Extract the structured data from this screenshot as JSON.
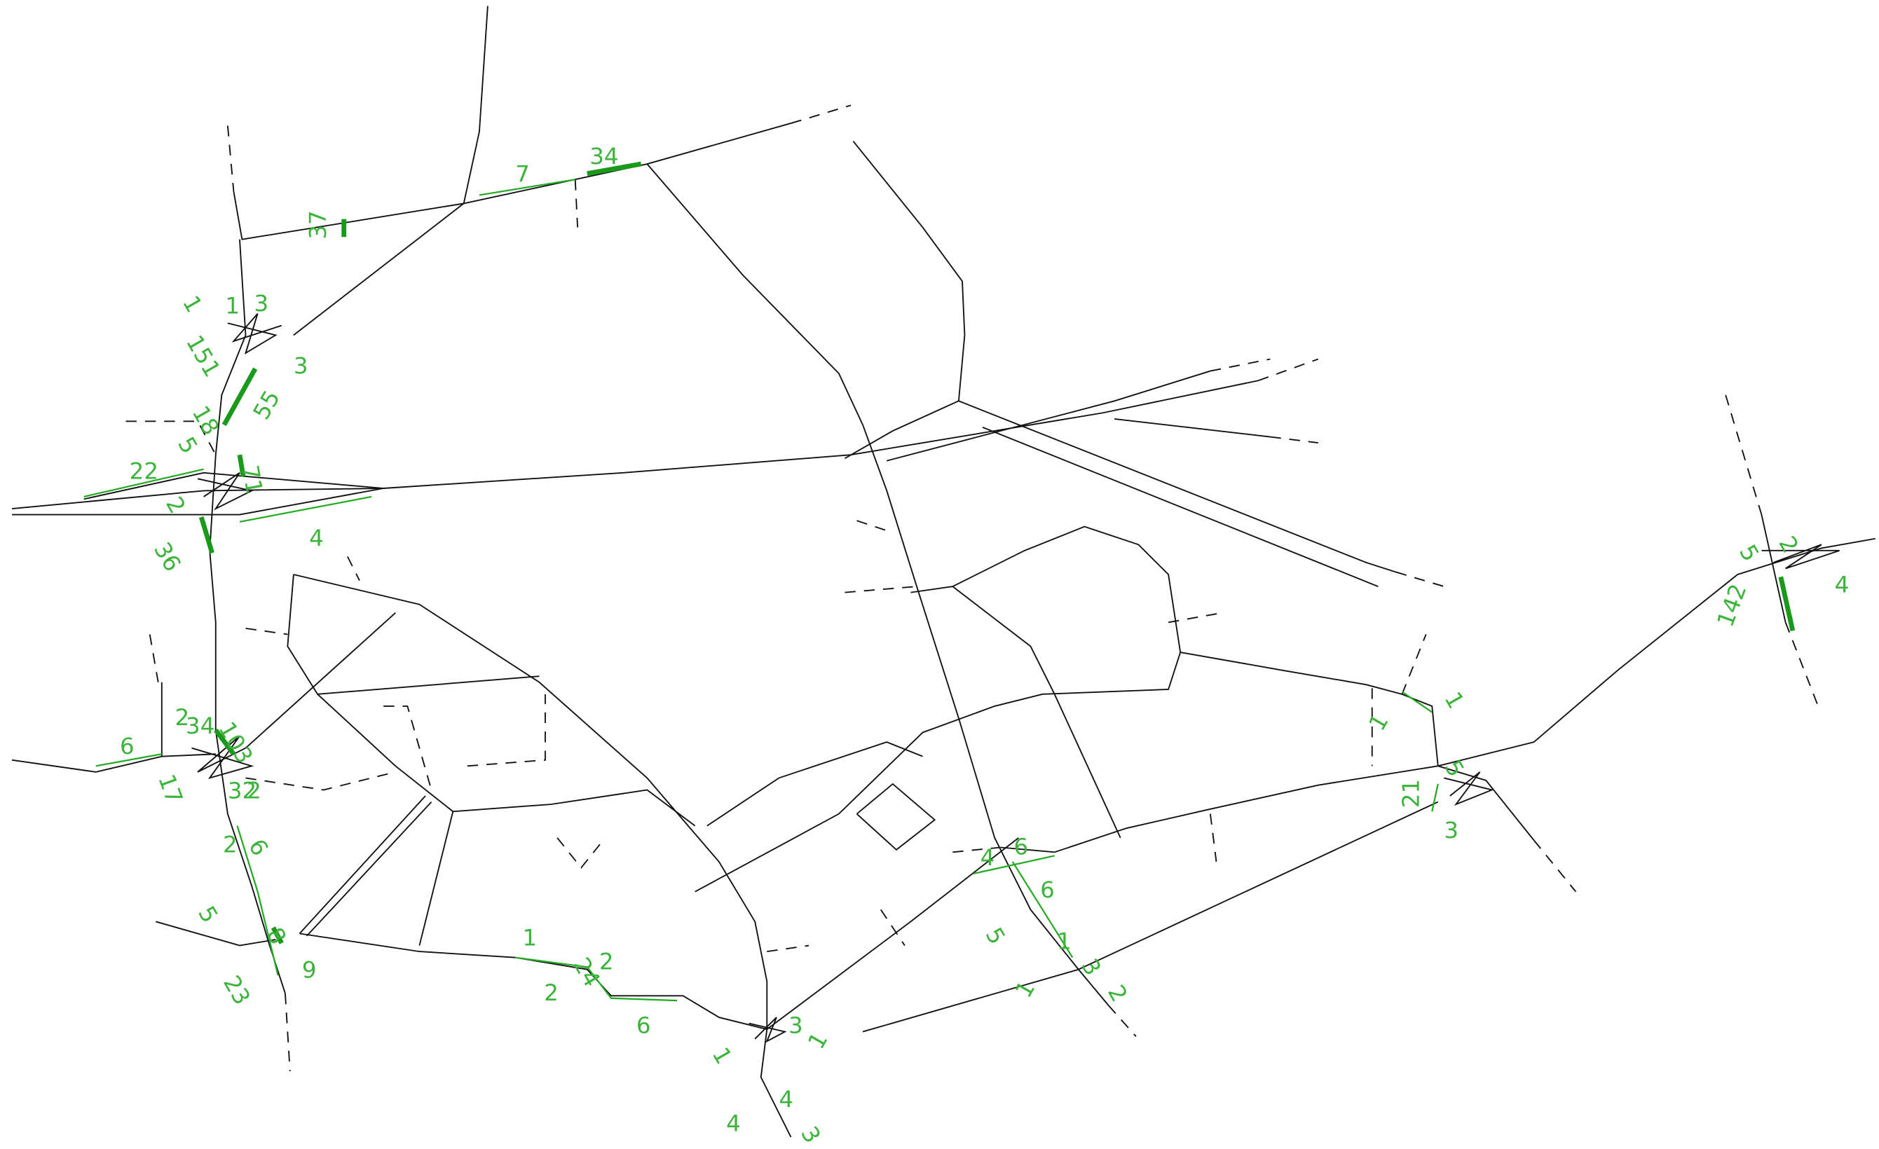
{
  "labels": [
    "7",
    "34",
    "37",
    "1",
    "1",
    "3",
    "151",
    "3",
    "55",
    "18",
    "5",
    "22",
    "71",
    "2",
    "36",
    "4",
    "103",
    "34",
    "2",
    "6",
    "17",
    "32",
    "2",
    "2",
    "6",
    "5",
    "23",
    "8",
    "9",
    "1",
    "2",
    "24",
    "2",
    "6",
    "1",
    "3",
    "1",
    "4",
    "3",
    "4",
    "4",
    "6",
    "6",
    "5",
    "1",
    "3",
    "2",
    "1",
    "1",
    "1",
    "5",
    "21",
    "3",
    "5",
    "2",
    "142",
    "4"
  ]
}
